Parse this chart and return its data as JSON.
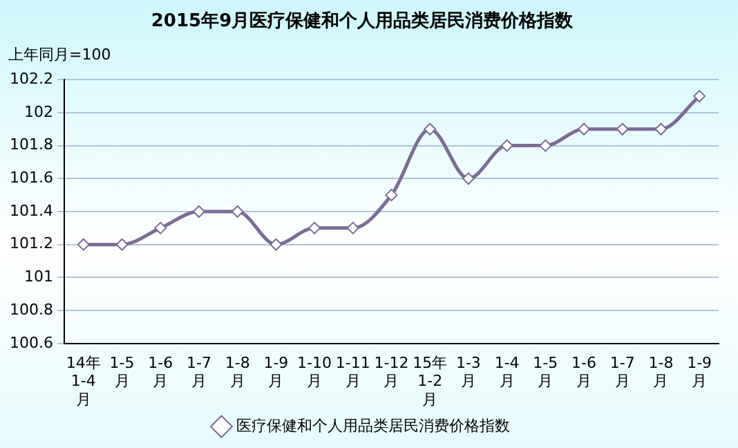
{
  "chart_data": {
    "type": "line",
    "title": "2015年9月医疗保健和个人用品类居民消费价格指数",
    "ylabel": "上年同月=100",
    "categories": [
      "14年1-4月",
      "1-5月",
      "1-6月",
      "1-7月",
      "1-8月",
      "1-9月",
      "1-10月",
      "1-11月",
      "1-12月",
      "15年1-2月",
      "1-3月",
      "1-4月",
      "1-5月",
      "1-6月",
      "1-7月",
      "1-8月",
      "1-9月"
    ],
    "series": [
      {
        "name": "医疗保健和个人用品类居民消费价格指数",
        "color": "#7b6c96",
        "values": [
          101.2,
          101.2,
          101.3,
          101.4,
          101.4,
          101.2,
          101.3,
          101.3,
          101.5,
          101.9,
          101.6,
          101.8,
          101.8,
          101.9,
          101.9,
          101.9,
          102.1
        ]
      }
    ],
    "ylim": [
      100.6,
      102.2
    ],
    "yticks": [
      100.6,
      100.8,
      101,
      101.2,
      101.4,
      101.6,
      101.8,
      102,
      102.2
    ],
    "grid": "y",
    "legend": "bottom",
    "marker": "diamond",
    "line_style": "solid"
  }
}
